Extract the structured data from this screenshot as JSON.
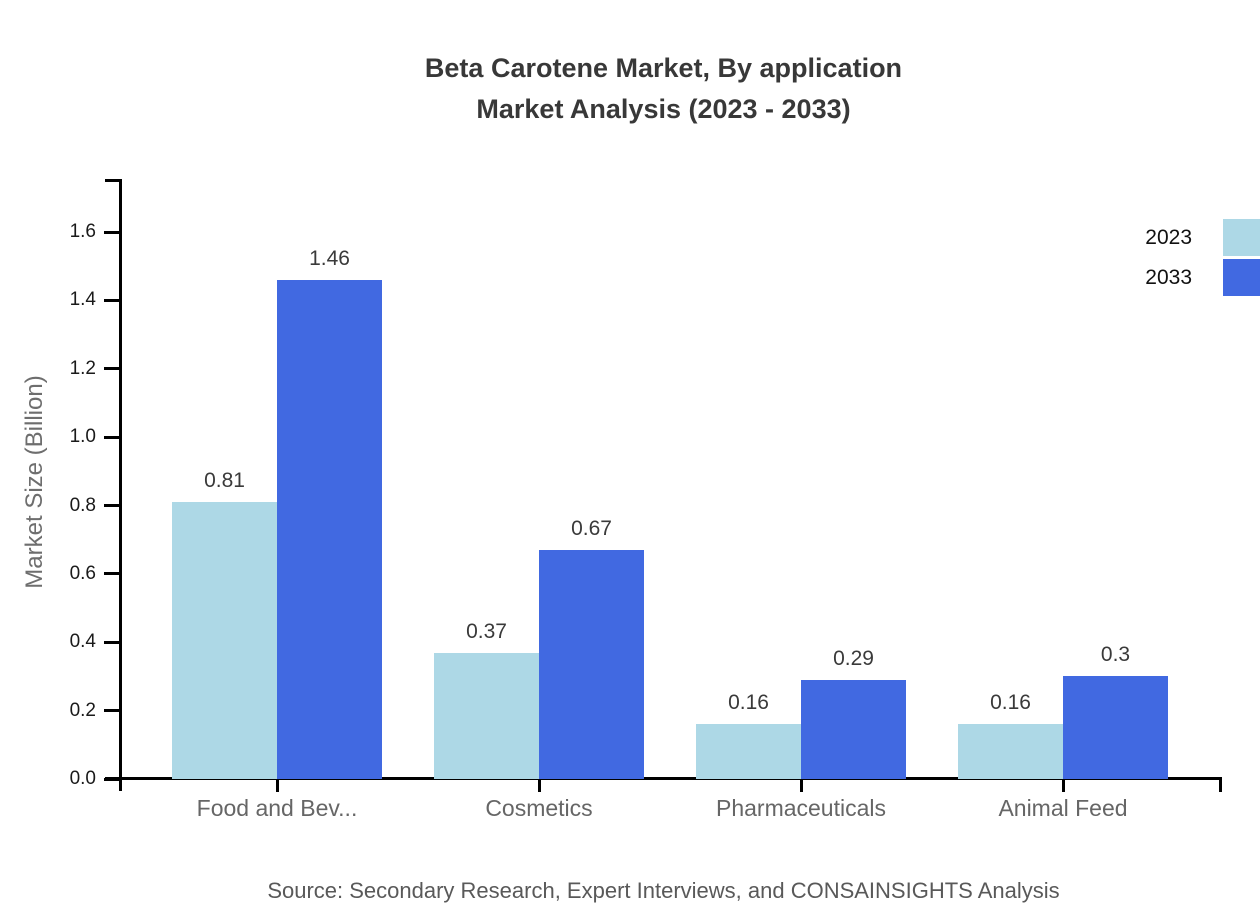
{
  "title": {
    "line1": "Beta Carotene Market, By application",
    "line2": "Market Analysis (2023 - 2033)"
  },
  "source": "Source: Secondary Research, Expert Interviews, and CONSAINSIGHTS Analysis",
  "chart_data": {
    "type": "bar",
    "title": "Beta Carotene Market, By application Market Analysis (2023 - 2033)",
    "categories": [
      "Food and Bev...",
      "Cosmetics",
      "Pharmaceuticals",
      "Animal Feed"
    ],
    "series": [
      {
        "name": "2023",
        "color": "#ADD8E6",
        "values": [
          0.81,
          0.37,
          0.16,
          0.16
        ],
        "labels": [
          "0.81",
          "0.37",
          "0.16",
          "0.16"
        ]
      },
      {
        "name": "2033",
        "color": "#4169E1",
        "values": [
          1.46,
          0.67,
          0.29,
          0.3
        ],
        "labels": [
          "1.46",
          "0.67",
          "0.29",
          "0.3"
        ]
      }
    ],
    "xlabel": "",
    "ylabel": "Market Size (Billion)",
    "ylim": [
      0,
      1.75
    ],
    "yticks": [
      0.0,
      0.2,
      0.4,
      0.6,
      0.8,
      1.0,
      1.2,
      1.4,
      1.6
    ],
    "ytick_labels": [
      "0.0",
      "0.2",
      "0.4",
      "0.6",
      "0.8",
      "1.0",
      "1.2",
      "1.4",
      "1.6"
    ],
    "grid": false,
    "legend_position": "top-right"
  },
  "legend": {
    "items": [
      {
        "label": "2023",
        "color": "#ADD8E6"
      },
      {
        "label": "2033",
        "color": "#4169E1"
      }
    ]
  },
  "colors": {
    "series_2023": "#ADD8E6",
    "series_2033": "#4169E1",
    "axis": "#000000",
    "title_text": "#383838",
    "value_label_text": "#3a3a3a",
    "category_text": "#666666",
    "axis_title_text": "#6e6e6e",
    "source_text": "#595959",
    "background": "#ffffff"
  }
}
